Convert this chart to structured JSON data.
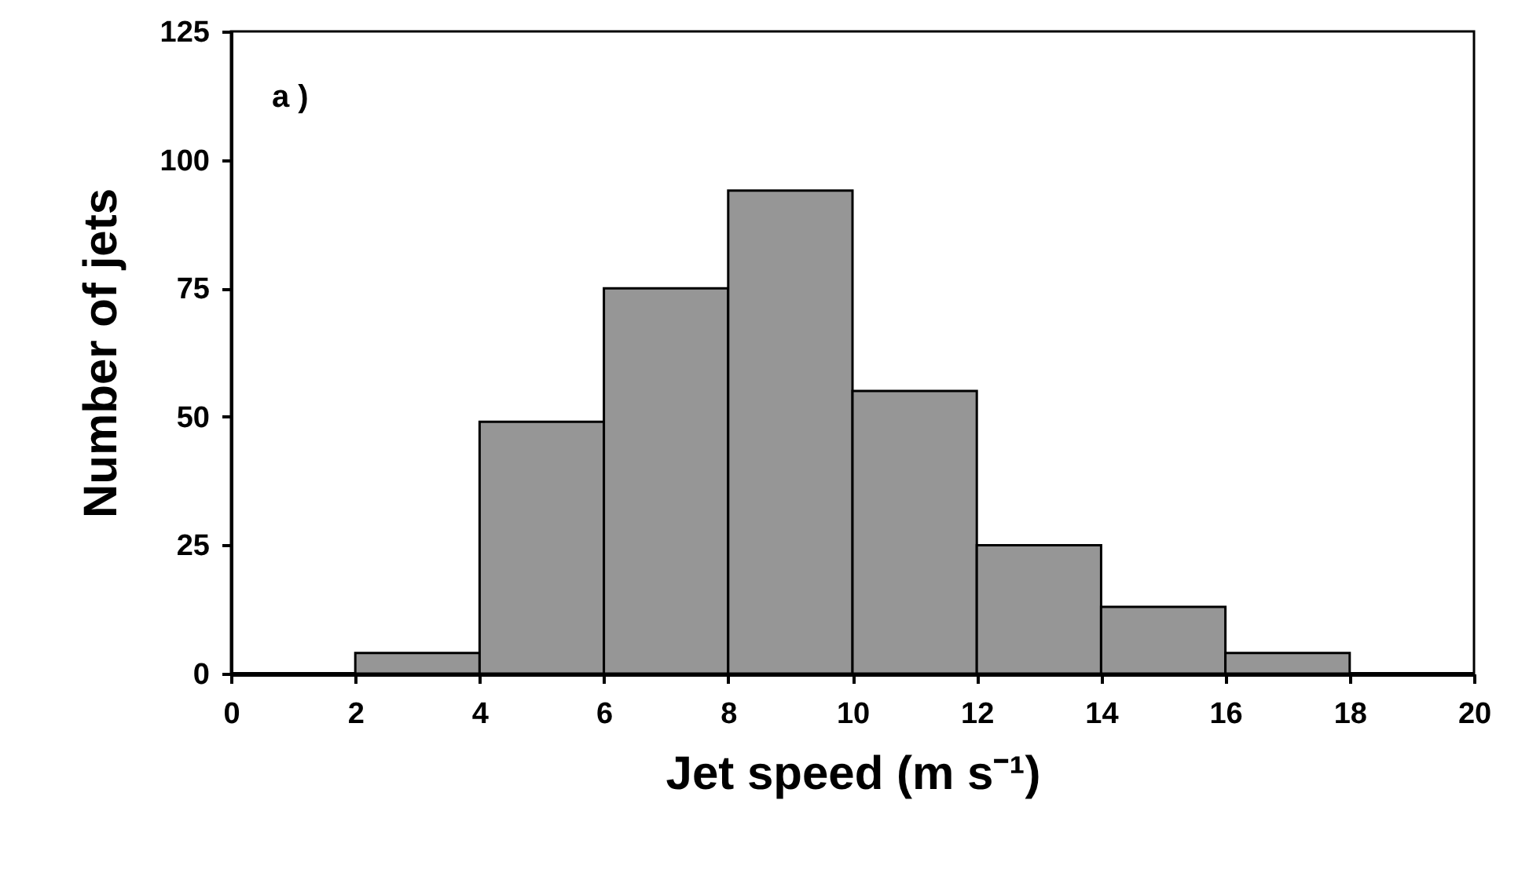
{
  "chart_data": {
    "type": "histogram",
    "xlabel": "Jet speed (m s⁻¹)",
    "ylabel": "Number of jets",
    "annotations": [
      "a )"
    ],
    "bins": [
      0,
      2,
      4,
      6,
      8,
      10,
      12,
      14,
      16,
      18,
      20
    ],
    "values": [
      0,
      4,
      49,
      75,
      94,
      55,
      25,
      13,
      4,
      0
    ],
    "color": "#969696",
    "xlim": [
      0,
      20
    ],
    "xticks": [
      0,
      2,
      4,
      6,
      8,
      10,
      12,
      14,
      16,
      18,
      20
    ],
    "ylim": [
      0,
      125
    ],
    "yticks": [
      0,
      25,
      50,
      75,
      100,
      125
    ],
    "grid": false
  }
}
